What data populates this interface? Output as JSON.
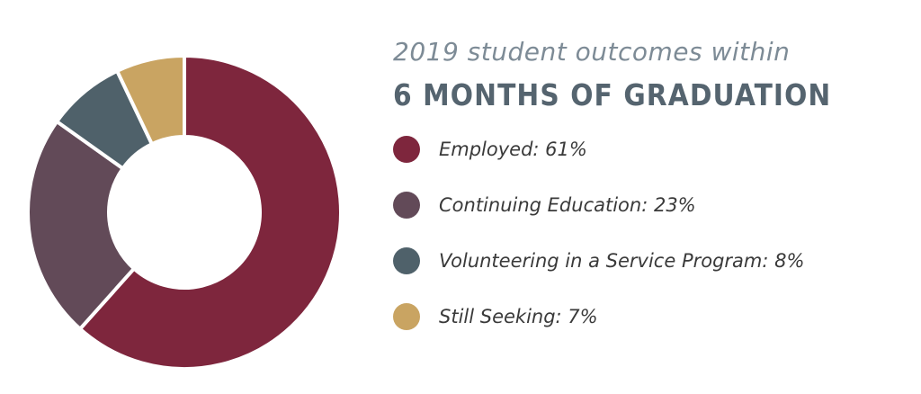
{
  "header": {
    "subtitle": "2019 student outcomes within",
    "title": "6 MONTHS OF GRADUATION"
  },
  "chart_data": {
    "type": "pie",
    "variant": "donut",
    "categories": [
      "Employed",
      "Continuing Education",
      "Volunteering in a Service Program",
      "Still Seeking"
    ],
    "values": [
      61,
      23,
      8,
      7
    ],
    "colors": [
      "#7e263d",
      "#624a58",
      "#4f616a",
      "#c9a462"
    ],
    "legend_labels": [
      "Employed: 61%",
      "Continuing Education: 23%",
      "Volunteering in a Service Program: 8%",
      "Still Seeking: 7%"
    ],
    "legend_position": "right"
  }
}
